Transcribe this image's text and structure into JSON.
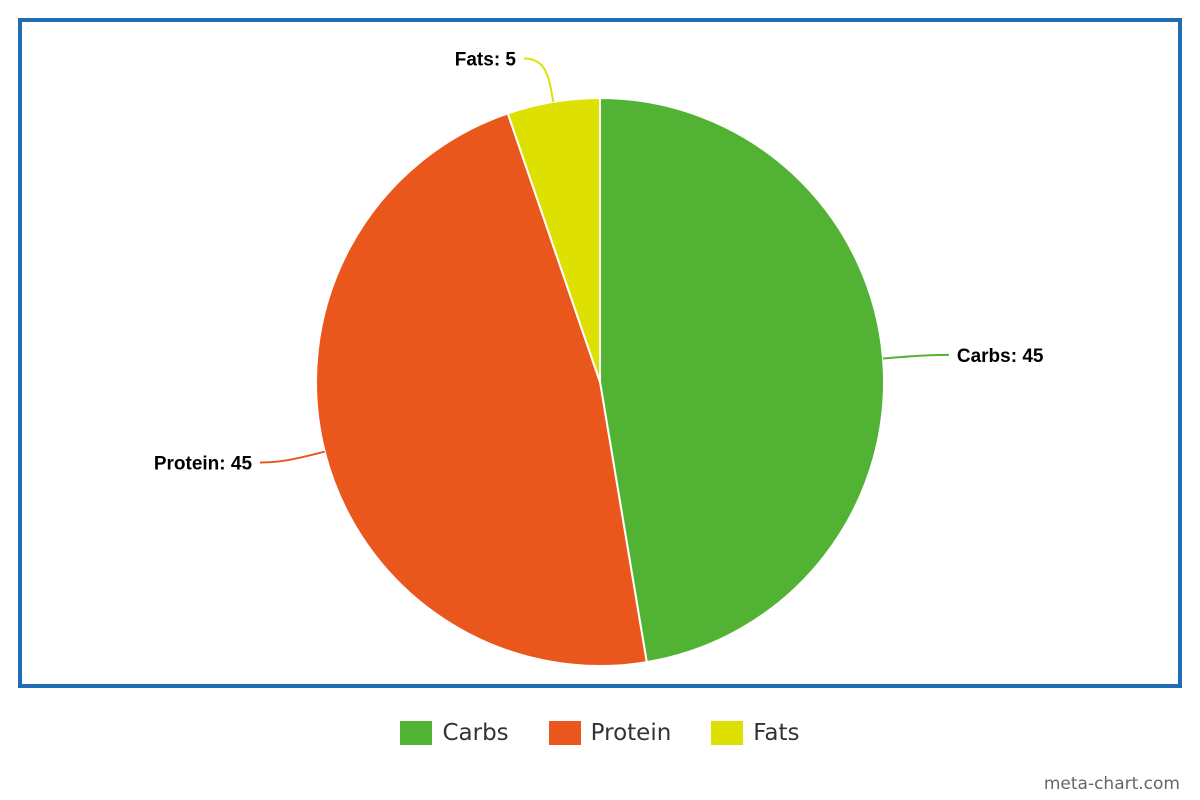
{
  "chart_data": {
    "type": "pie",
    "title": "",
    "slices": [
      {
        "label": "Carbs",
        "value": 45,
        "color": "#52b233"
      },
      {
        "label": "Protein",
        "value": 45,
        "color": "#ea571d"
      },
      {
        "label": "Fats",
        "value": 5,
        "color": "#dde000"
      }
    ],
    "data_label_separator": ": ",
    "legend": {
      "placement": "bottom",
      "entries": [
        "Carbs",
        "Protein",
        "Fats"
      ]
    },
    "frame_color": "#1f6eb3"
  },
  "watermark": "meta-chart.com"
}
